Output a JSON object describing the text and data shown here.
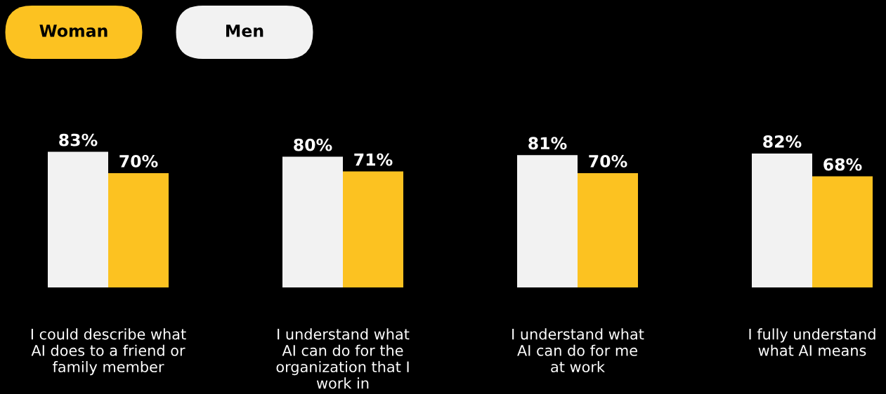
{
  "chart_data": {
    "type": "bar",
    "categories": [
      "I could describe what\nAI does to a friend or\nfamily member",
      "I understand what\nAI can do for the\norganization that I\nwork in",
      "I understand what\nAI can do for me\nat work",
      "I fully understand\nwhat AI means"
    ],
    "series": [
      {
        "name": "Men",
        "color": "#f2f2f2",
        "values": [
          83,
          80,
          81,
          82
        ],
        "value_labels": [
          "83%",
          "80%",
          "81%",
          "82%"
        ]
      },
      {
        "name": "Woman",
        "color": "#fcc221",
        "values": [
          70,
          71,
          70,
          68
        ],
        "value_labels": [
          "70%",
          "71%",
          "70%",
          "68%"
        ]
      }
    ],
    "legend": "top left",
    "grid": false
  }
}
